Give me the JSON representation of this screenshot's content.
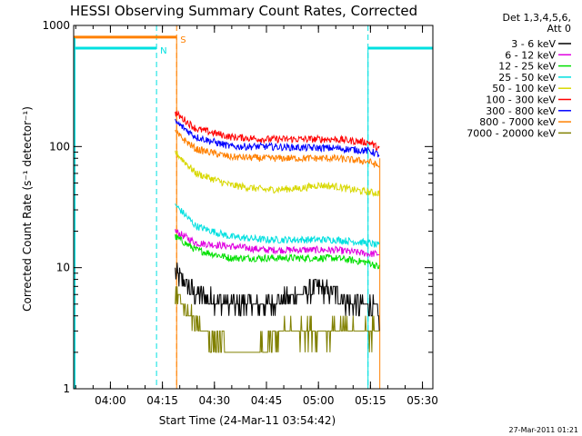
{
  "chart_data": {
    "type": "line",
    "title": "HESSI Observing Summary Count Rates, Corrected",
    "xlabel": "Start Time (24-Mar-11 03:54:42)",
    "ylabel": "Corrected Count Rate (s⁻¹ detector⁻¹)",
    "ylog": true,
    "ylim": [
      1,
      1000
    ],
    "xlim_minutes": [
      -5.3,
      98.3
    ],
    "x_tick_labels": [
      "04:00",
      "04:15",
      "04:30",
      "04:45",
      "05:00",
      "05:15",
      "05:30"
    ],
    "x_ticks_minutes": [
      5.3,
      20.3,
      35.3,
      50.3,
      65.3,
      80.3,
      95.3
    ],
    "y_tick_labels": [
      "1",
      "10",
      "100",
      "1000"
    ],
    "y_ticks": [
      1,
      10,
      100,
      1000
    ],
    "legend_title": [
      "Det 1,3,4,5,6,",
      "Att 0"
    ],
    "legend_position": "outside-right",
    "series": [
      {
        "name": "3 - 6 keV",
        "color": "#000000",
        "x": [
          24,
          30,
          40,
          50,
          60,
          65,
          70,
          75,
          80,
          83
        ],
        "values": [
          9,
          6,
          5,
          5,
          6,
          7,
          6,
          5,
          5,
          4
        ]
      },
      {
        "name": "6 - 12 keV",
        "color": "#e000e0",
        "x": [
          24,
          30,
          40,
          50,
          60,
          70,
          80,
          83
        ],
        "values": [
          20,
          16,
          15,
          14,
          14,
          14,
          13,
          13
        ]
      },
      {
        "name": "12 - 25 keV",
        "color": "#00e000",
        "x": [
          24,
          30,
          40,
          50,
          60,
          70,
          80,
          83
        ],
        "values": [
          18,
          14,
          12,
          12,
          12,
          12,
          11,
          10
        ]
      },
      {
        "name": "25 - 50 keV",
        "color": "#00e0e0",
        "x": [
          24,
          30,
          40,
          50,
          60,
          70,
          80,
          83
        ],
        "values": [
          33,
          22,
          18,
          17,
          17,
          17,
          16,
          15
        ]
      },
      {
        "name": "50 - 100 keV",
        "color": "#d8d800",
        "x": [
          24,
          30,
          40,
          50,
          60,
          65,
          70,
          75,
          80,
          83
        ],
        "values": [
          90,
          60,
          48,
          44,
          45,
          48,
          47,
          44,
          42,
          41
        ]
      },
      {
        "name": "100 - 300 keV",
        "color": "#ff0000",
        "x": [
          24,
          30,
          40,
          50,
          60,
          70,
          80,
          83
        ],
        "values": [
          190,
          140,
          120,
          115,
          115,
          115,
          108,
          95
        ]
      },
      {
        "name": "300 - 800 keV",
        "color": "#0000ff",
        "x": [
          24,
          30,
          40,
          50,
          60,
          70,
          80,
          83
        ],
        "values": [
          160,
          120,
          100,
          100,
          98,
          97,
          92,
          85
        ]
      },
      {
        "name": "800 - 7000 keV",
        "color": "#ff8000",
        "x": [
          24,
          30,
          40,
          50,
          60,
          70,
          80,
          83
        ],
        "values": [
          130,
          95,
          82,
          80,
          80,
          80,
          75,
          68
        ]
      },
      {
        "name": "7000 - 20000 keV",
        "color": "#808000",
        "x": [
          24,
          28,
          32,
          40,
          48,
          55,
          60,
          68,
          75,
          80,
          83
        ],
        "values": [
          6,
          4,
          3,
          2,
          2,
          3,
          3,
          3,
          3,
          3,
          3
        ]
      }
    ],
    "intervals": {
      "night": {
        "label": "N",
        "color": "#00e0e0",
        "ranges": [
          [
            -5.3,
            18.6
          ],
          [
            79.6,
            98.3
          ]
        ],
        "level": 650
      },
      "saa": {
        "label": "S",
        "color": "#ff8000",
        "ranges": [
          [
            -5.3,
            24.4
          ]
        ],
        "level": 800
      }
    },
    "lines_end_minute": 83.0
  },
  "footer": {
    "timestamp": "27-Mar-2011 01:21"
  }
}
